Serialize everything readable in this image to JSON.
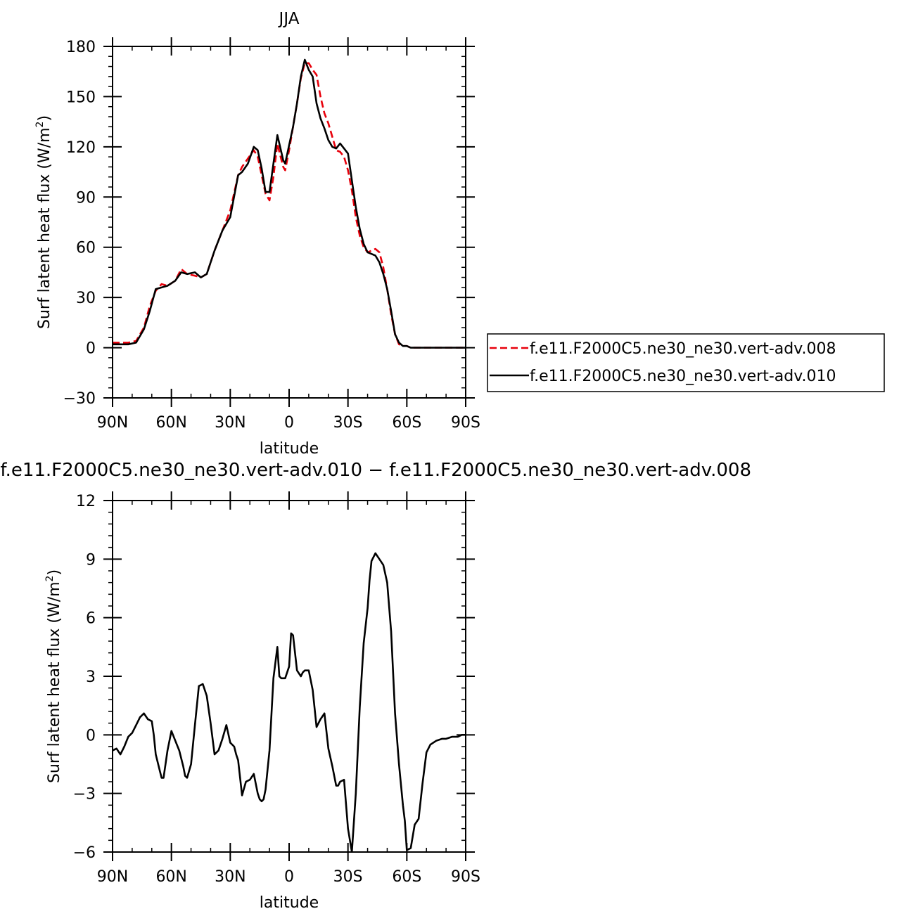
{
  "chart_data": [
    {
      "type": "line",
      "title": "JJA",
      "xlabel": "latitude",
      "ylabel_main": "Surf latent heat flux (W/m",
      "ylabel_sup": "2",
      "ylabel_close": ")",
      "xlim": [
        90,
        -90
      ],
      "ylim": [
        -30,
        180
      ],
      "yticks": [
        -30,
        0,
        30,
        60,
        90,
        120,
        150,
        180
      ],
      "ytick_labels": [
        "−30",
        "0",
        "30",
        "60",
        "90",
        "120",
        "150",
        "180"
      ],
      "xticks": [
        90,
        60,
        30,
        0,
        -30,
        -60,
        -90
      ],
      "xtick_labels": [
        "90N",
        "60N",
        "30N",
        "0",
        "30S",
        "60S",
        "90S"
      ],
      "grid": false,
      "legend_position": "right",
      "series": [
        {
          "name": "f.e11.F2000C5.ne30_ne30.vert-adv.008",
          "color": "#e8000b",
          "dash": "dashed",
          "x": [
            90,
            85,
            82,
            78,
            74,
            71,
            68,
            65,
            62,
            58,
            55,
            52,
            48,
            45,
            42,
            38,
            34,
            30,
            26,
            24,
            21,
            18,
            16,
            14,
            12,
            10,
            8,
            6,
            5,
            3,
            2,
            0,
            -2,
            -4,
            -6,
            -8,
            -10,
            -12,
            -14,
            -16,
            -18,
            -20,
            -22,
            -24,
            -26,
            -28,
            -30,
            -32,
            -34,
            -36,
            -38,
            -40,
            -42,
            -44,
            -46,
            -48,
            -50,
            -52,
            -54,
            -56,
            -58,
            -60,
            -62,
            -64,
            -66,
            -68,
            -70,
            -72,
            -75,
            -78,
            -82,
            -85,
            -90
          ],
          "y": [
            3,
            3,
            3,
            4,
            12,
            25,
            34,
            38,
            37,
            40,
            47,
            44,
            43,
            42,
            44,
            58,
            70,
            82,
            103,
            108,
            113,
            118,
            114,
            103,
            92,
            88,
            102,
            122,
            117,
            108,
            106,
            118,
            132,
            146,
            161,
            170,
            170,
            166,
            163,
            150,
            140,
            134,
            126,
            118,
            117,
            114,
            106,
            94,
            78,
            67,
            60,
            57,
            58,
            59,
            57,
            48,
            35,
            20,
            8,
            2,
            1,
            1,
            0,
            0,
            0,
            0,
            0,
            0,
            0,
            0,
            0,
            0,
            0
          ]
        },
        {
          "name": "f.e11.F2000C5.ne30_ne30.vert-adv.010",
          "color": "#000000",
          "dash": "solid",
          "x": [
            90,
            85,
            82,
            78,
            74,
            71,
            68,
            65,
            62,
            58,
            55,
            52,
            48,
            45,
            42,
            38,
            34,
            30,
            26,
            24,
            21,
            18,
            16,
            14,
            12,
            10,
            8,
            6,
            5,
            3,
            2,
            0,
            -2,
            -4,
            -6,
            -8,
            -10,
            -12,
            -14,
            -16,
            -18,
            -20,
            -22,
            -24,
            -26,
            -28,
            -30,
            -32,
            -34,
            -36,
            -38,
            -40,
            -42,
            -44,
            -46,
            -48,
            -50,
            -52,
            -54,
            -56,
            -58,
            -60,
            -62,
            -64,
            -66,
            -68,
            -70,
            -72,
            -75,
            -78,
            -82,
            -85,
            -90
          ],
          "y": [
            2,
            2,
            2,
            3,
            11,
            22,
            35,
            36,
            37,
            40,
            45,
            44,
            45,
            42,
            44,
            58,
            70,
            78,
            103,
            105,
            110,
            120,
            118,
            107,
            93,
            93,
            110,
            127,
            122,
            112,
            110,
            121,
            132,
            146,
            162,
            172,
            166,
            162,
            146,
            137,
            131,
            124,
            120,
            119,
            122,
            119,
            116,
            100,
            84,
            71,
            62,
            57,
            56,
            55,
            51,
            44,
            35,
            22,
            8,
            3,
            1,
            1,
            0,
            0,
            0,
            0,
            0,
            0,
            0,
            0,
            0,
            0,
            0
          ]
        }
      ]
    },
    {
      "type": "line",
      "title": "f.e11.F2000C5.ne30_ne30.vert-adv.010 − f.e11.F2000C5.ne30_ne30.vert-adv.008",
      "xlabel": "latitude",
      "ylabel_main": "Surf latent heat flux (W/m",
      "ylabel_sup": "2",
      "ylabel_close": ")",
      "xlim": [
        90,
        -90
      ],
      "ylim": [
        -6,
        12
      ],
      "yticks": [
        -6,
        -3,
        0,
        3,
        6,
        9,
        12
      ],
      "ytick_labels": [
        "−6",
        "−3",
        "0",
        "3",
        "6",
        "9",
        "12"
      ],
      "xticks": [
        90,
        60,
        30,
        0,
        -30,
        -60,
        -90
      ],
      "xtick_labels": [
        "90N",
        "60N",
        "30N",
        "0",
        "30S",
        "60S",
        "90S"
      ],
      "grid": false,
      "series": [
        {
          "color": "#000000",
          "dash": "solid",
          "x": [
            90,
            88,
            86,
            84,
            82,
            80,
            78,
            76,
            74,
            72,
            70,
            69,
            68,
            66,
            65,
            64,
            62,
            60,
            58,
            56,
            54,
            53,
            52,
            50,
            48,
            46,
            44,
            42,
            40,
            38,
            36,
            34,
            32,
            30,
            28,
            27,
            26,
            25,
            24,
            22,
            20,
            18,
            16,
            15,
            14,
            13,
            12,
            10,
            8,
            6,
            5,
            4,
            2,
            0,
            -1,
            -2,
            -4,
            -6,
            -7,
            -8,
            -10,
            -12,
            -14,
            -16,
            -18,
            -20,
            -22,
            -24,
            -25,
            -26,
            -28,
            -30,
            -32,
            -34,
            -36,
            -38,
            -40,
            -41,
            -42,
            -44,
            -46,
            -48,
            -50,
            -52,
            -54,
            -56,
            -58,
            -59,
            -60,
            -62,
            -64,
            -66,
            -68,
            -70,
            -72,
            -75,
            -78,
            -80,
            -83,
            -86,
            -88,
            -90
          ],
          "y": [
            -0.8,
            -0.7,
            -1.0,
            -0.6,
            -0.1,
            0.1,
            0.5,
            0.9,
            1.1,
            0.8,
            0.7,
            0.0,
            -1.0,
            -1.8,
            -2.2,
            -2.2,
            -0.8,
            0.2,
            -0.3,
            -0.8,
            -1.6,
            -2.1,
            -2.2,
            -1.5,
            0.5,
            2.5,
            2.6,
            2.0,
            0.6,
            -1.0,
            -0.8,
            -0.2,
            0.5,
            -0.4,
            -0.6,
            -1.0,
            -1.3,
            -2.2,
            -3.1,
            -2.4,
            -2.3,
            -2.0,
            -3.0,
            -3.3,
            -3.4,
            -3.3,
            -2.8,
            -0.8,
            2.9,
            4.5,
            3.0,
            2.9,
            2.9,
            3.5,
            5.2,
            5.1,
            3.3,
            3.0,
            3.2,
            3.3,
            3.3,
            2.3,
            0.4,
            0.8,
            1.1,
            -0.7,
            -1.6,
            -2.6,
            -2.6,
            -2.4,
            -2.3,
            -4.8,
            -6.0,
            -3.0,
            1.4,
            4.7,
            6.5,
            7.9,
            8.9,
            9.3,
            9.0,
            8.7,
            7.8,
            5.3,
            1.1,
            -1.5,
            -3.6,
            -4.4,
            -5.9,
            -5.8,
            -4.6,
            -4.3,
            -2.5,
            -0.9,
            -0.5,
            -0.3,
            -0.2,
            -0.2,
            -0.1,
            -0.1,
            0.0,
            0.0
          ]
        }
      ]
    }
  ]
}
